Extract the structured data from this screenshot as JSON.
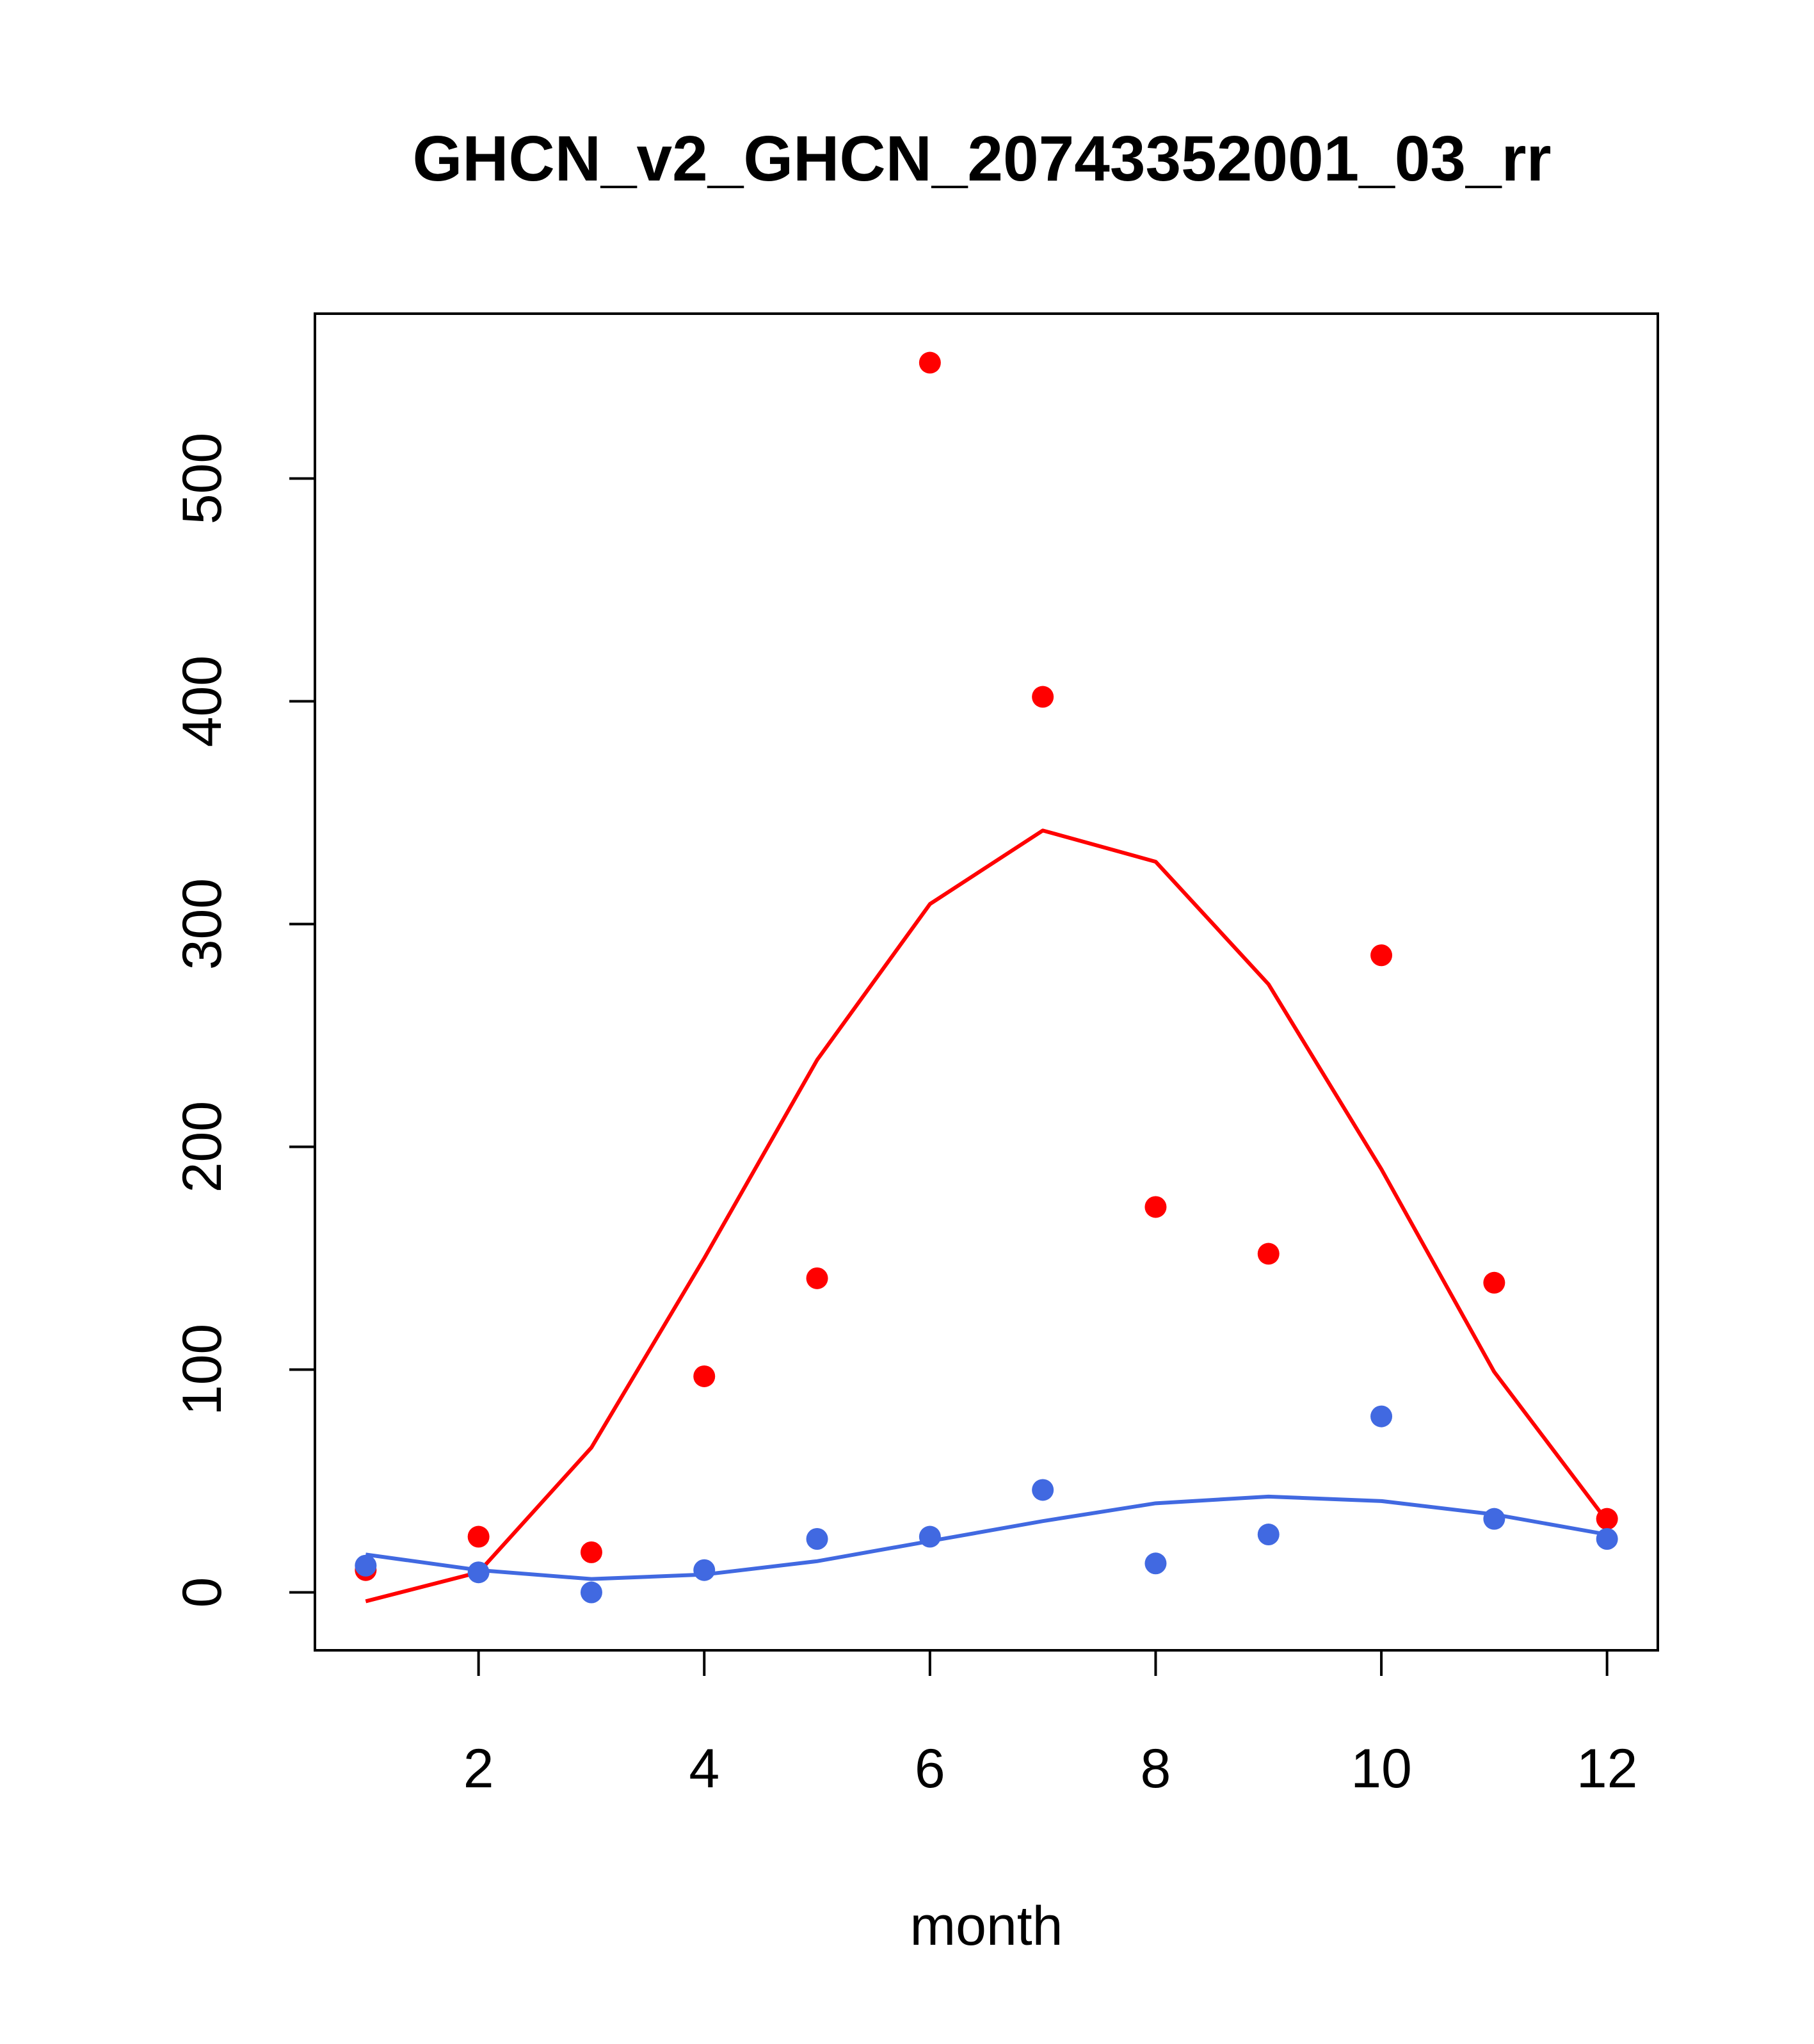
{
  "chart_data": {
    "type": "scatter",
    "title": "GHCN_v2_GHCN_20743352001_03_rr",
    "xlabel": "month",
    "ylabel": "",
    "xlim": [
      0.55,
      12.45
    ],
    "ylim": [
      -26,
      574
    ],
    "x_ticks": [
      2,
      4,
      6,
      8,
      10,
      12
    ],
    "x_tick_labels": [
      "2",
      "4",
      "6",
      "8",
      "10",
      "12"
    ],
    "y_ticks": [
      0,
      100,
      200,
      300,
      400,
      500
    ],
    "y_tick_labels": [
      "0",
      "100",
      "200",
      "300",
      "400",
      "500"
    ],
    "grid": false,
    "series": [
      {
        "name": "observed (red points)",
        "kind": "points",
        "color": "#ff0000",
        "x": [
          1,
          2,
          3,
          4,
          5,
          6,
          7,
          8,
          9,
          10,
          11,
          12
        ],
        "values": [
          10,
          25,
          18,
          97,
          141,
          552,
          402,
          173,
          152,
          286,
          139,
          33
        ]
      },
      {
        "name": "fitted (red line)",
        "kind": "line",
        "color": "#ff0000",
        "x": [
          1,
          2,
          3,
          4,
          5,
          6,
          7,
          8,
          9,
          10,
          11,
          12
        ],
        "values": [
          -4,
          9,
          65,
          150,
          239,
          309,
          342,
          328,
          273,
          190,
          99,
          32
        ]
      },
      {
        "name": "observed (blue points)",
        "kind": "points",
        "color": "#4169e1",
        "x": [
          1,
          2,
          3,
          4,
          5,
          6,
          7,
          8,
          9,
          10,
          11,
          12
        ],
        "values": [
          12,
          9,
          0,
          10,
          24,
          25,
          46,
          13,
          26,
          79,
          33,
          24
        ]
      },
      {
        "name": "fitted (blue line)",
        "kind": "line",
        "color": "#4169e1",
        "x": [
          1,
          2,
          3,
          4,
          5,
          6,
          7,
          8,
          9,
          10,
          11,
          12
        ],
        "values": [
          17,
          10,
          6,
          8,
          14,
          23,
          32,
          40,
          43,
          41,
          35,
          26
        ]
      }
    ]
  }
}
